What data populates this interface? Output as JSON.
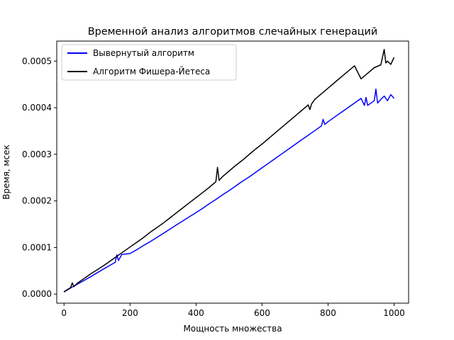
{
  "chart_data": {
    "type": "line",
    "title": "Временной анализ алгоритмов слечайных генераций",
    "xlabel": "Мощность множества",
    "ylabel": "Время, мсек",
    "xlim": [
      -22,
      1044
    ],
    "ylim": [
      -1.95e-05,
      0.000543
    ],
    "xticks": [
      0,
      200,
      400,
      600,
      800,
      1000
    ],
    "xtick_labels": [
      "0",
      "200",
      "400",
      "600",
      "800",
      "1000"
    ],
    "yticks": [
      0.0,
      0.0001,
      0.0002,
      0.0003,
      0.0004,
      0.0005
    ],
    "ytick_labels": [
      "0.0000",
      "0.0001",
      "0.0002",
      "0.0003",
      "0.0004",
      "0.0005"
    ],
    "grid": false,
    "legend_position": "upper-left",
    "series": [
      {
        "name": "Вывернутый алгоритм",
        "color": "#0000ff",
        "x": [
          0,
          20,
          40,
          60,
          80,
          100,
          120,
          140,
          155,
          160,
          165,
          175,
          200,
          220,
          240,
          260,
          280,
          300,
          320,
          340,
          360,
          380,
          400,
          420,
          440,
          460,
          480,
          500,
          520,
          540,
          560,
          580,
          600,
          620,
          640,
          660,
          680,
          700,
          720,
          740,
          760,
          780,
          785,
          790,
          800,
          820,
          840,
          860,
          880,
          900,
          910,
          915,
          920,
          940,
          945,
          950,
          960,
          970,
          980,
          990,
          1000
        ],
        "values": [
          4.5e-06,
          1.3e-05,
          2.1e-05,
          2.9e-05,
          3.7e-05,
          4.55e-05,
          5.4e-05,
          6.2e-05,
          6.8e-05,
          8.4e-05,
          7.2e-05,
          8.5e-05,
          8.7e-05,
          9.5e-05,
          0.000104,
          0.000112,
          0.000121,
          0.00013,
          0.000139,
          0.000148,
          0.000157,
          0.000166,
          0.000175,
          0.000184,
          0.000194,
          0.000203,
          0.000213,
          0.000222,
          0.000232,
          0.000242,
          0.000251,
          0.000261,
          0.000271,
          0.000281,
          0.000291,
          0.000301,
          0.000311,
          0.000321,
          0.000331,
          0.000341,
          0.000351,
          0.000361,
          0.000375,
          0.000364,
          0.00037,
          0.00038,
          0.00039,
          0.0004,
          0.00041,
          0.00042,
          0.000405,
          0.000422,
          0.000405,
          0.000415,
          0.00044,
          0.00041,
          0.000418,
          0.000425,
          0.000415,
          0.000428,
          0.00042
        ]
      },
      {
        "name": "Алгоритм Фишера-Йетеса",
        "color": "#000000",
        "x": [
          0,
          20,
          25,
          30,
          40,
          60,
          80,
          100,
          120,
          140,
          160,
          180,
          200,
          220,
          240,
          260,
          280,
          300,
          320,
          340,
          360,
          380,
          400,
          420,
          440,
          460,
          465,
          470,
          480,
          500,
          520,
          540,
          560,
          580,
          600,
          620,
          640,
          660,
          680,
          700,
          720,
          740,
          745,
          750,
          760,
          780,
          800,
          820,
          840,
          860,
          880,
          900,
          920,
          940,
          960,
          970,
          975,
          980,
          990,
          1000
        ],
        "values": [
          5e-06,
          1.4e-05,
          2.4e-05,
          1.6e-05,
          2.3e-05,
          3.3e-05,
          4.3e-05,
          5.2e-05,
          6.1e-05,
          7.1e-05,
          8.1e-05,
          9.1e-05,
          0.000101,
          0.000111,
          0.000121,
          0.000132,
          0.000142,
          0.000152,
          0.000163,
          0.000174,
          0.000185,
          0.000196,
          0.000207,
          0.000218,
          0.000229,
          0.000241,
          0.000272,
          0.000244,
          0.000252,
          0.000264,
          0.000276,
          0.000287,
          0.000299,
          0.000311,
          0.000322,
          0.000334,
          0.000346,
          0.000358,
          0.00037,
          0.000382,
          0.000394,
          0.000406,
          0.000396,
          0.000408,
          0.000418,
          0.00043,
          0.000442,
          0.000454,
          0.000466,
          0.000478,
          0.00049,
          0.000462,
          0.000474,
          0.000486,
          0.000492,
          0.000525,
          0.000496,
          0.0005,
          0.000493,
          0.000508
        ]
      }
    ]
  }
}
